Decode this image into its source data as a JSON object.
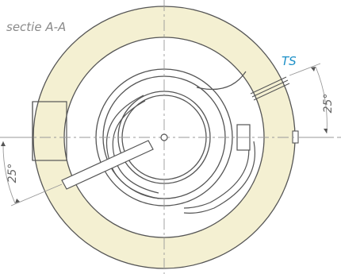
{
  "drawing": {
    "section_label": "sectie A-A",
    "pipe_label": "TS",
    "angle_top_right": "25°",
    "angle_bottom_left": "25°"
  },
  "colors": {
    "ring_fill": "#f4f0d2",
    "line": "#555555",
    "accent": "#1b8fc7",
    "centerline": "#999999"
  },
  "icons": [
    "center-mark-icon"
  ]
}
